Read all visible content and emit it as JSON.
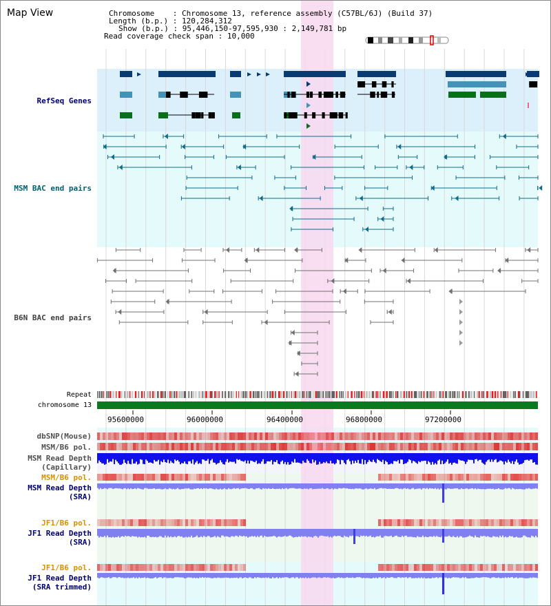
{
  "header": {
    "title": "Map View",
    "chromosome_label": "Chromosome",
    "chromosome_value": "Chromosome 13, reference assembly (C57BL/6J) (Build 37)",
    "length_label": "Length (b.p.)",
    "length_value": "120,284,312",
    "show_label": "Show (b.p.)",
    "show_value": "95,446,150-97,595,930 : 2,149,781 bp",
    "span_label": "Read coverage check span",
    "span_value": "10,000"
  },
  "tracks": {
    "refseq": "RefSeq Genes",
    "msm_bac": "MSM BAC end pairs",
    "b6n_bac": "B6N BAC end pairs",
    "repeat": "Repeat",
    "chromosome": "chromosome 13",
    "dbsnp": "dbSNP(Mouse)",
    "msm_b6_pol_1": "MSM/B6 pol.",
    "msm_read_depth_cap_1": "MSM Read Depth",
    "msm_read_depth_cap_2": "(Capillary)",
    "msm_b6_pol_2": "MSM/B6 pol.",
    "msm_read_depth_sra_1": "MSM Read Depth",
    "msm_read_depth_sra_2": "(SRA)",
    "jf1_b6_pol_1": "JF1/B6 pol.",
    "jf1_read_depth_sra_1": "JF1 Read Depth",
    "jf1_read_depth_sra_2": "(SRA)",
    "jf1_b6_pol_2": "JF1/B6 pol.",
    "jf1_read_depth_trim_1": "JF1 Read Depth",
    "jf1_read_depth_trim_2": "(SRA trimmed)"
  },
  "axis": {
    "ticks": [
      "95600000",
      "96000000",
      "96400000",
      "96800000",
      "97200000"
    ]
  },
  "colors": {
    "refseq_bg": "#dbf0fb",
    "msm_bg": "#e5fafa",
    "highlight": "#f8d8f0",
    "gene_dark": "#0a3a72",
    "gene_mid": "#4592b8",
    "gene_green": "#0a6e1a",
    "bac_teal": "#106a8a",
    "bac_gray": "#707070",
    "chrom_green": "#0a7a20",
    "snp_red": "#e02020",
    "depth_blue": "#1010ee",
    "depth_light": "#8080f0",
    "label_navy": "#00006e",
    "label_teal": "#006070",
    "label_orange": "#d89000"
  }
}
